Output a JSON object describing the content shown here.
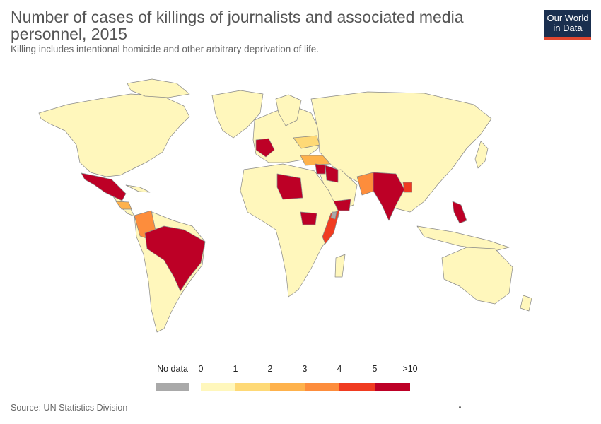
{
  "title": "Number of cases of killings of journalists and associated media personnel, 2015",
  "subtitle": "Killing includes intentional homicide and other arbitrary deprivation of life.",
  "logo": {
    "line1": "Our World",
    "line2": "in Data"
  },
  "source": "Source: UN Statistics Division",
  "colors": {
    "no_data": "#a9a9a9",
    "bin_0_1": "#fff7bc",
    "bin_1_2": "#fed976",
    "bin_2_3": "#feb24c",
    "bin_3_4": "#fd8d3c",
    "bin_4_5": "#f03b20",
    "bin_5_10": "#bd0026",
    "border": "#888888",
    "brand": "#1a2f4f",
    "brand_accent": "#e1472f"
  },
  "legend": {
    "no_data_label": "No data",
    "ticks": [
      "0",
      "1",
      "2",
      "3",
      "4",
      "5",
      ">10"
    ]
  },
  "map_data": {
    "highlighted_regions": [
      {
        "region": "Mexico",
        "bin": ">10"
      },
      {
        "region": "Brazil",
        "bin": ">10"
      },
      {
        "region": "France",
        "bin": ">10"
      },
      {
        "region": "Libya",
        "bin": ">10"
      },
      {
        "region": "Iraq",
        "bin": ">10"
      },
      {
        "region": "Syria",
        "bin": ">10"
      },
      {
        "region": "Yemen",
        "bin": ">10"
      },
      {
        "region": "India",
        "bin": ">10"
      },
      {
        "region": "Philippines",
        "bin": ">10"
      },
      {
        "region": "South Sudan",
        "bin": ">10"
      },
      {
        "region": "Bangladesh",
        "bin": "4–5"
      },
      {
        "region": "Somalia",
        "bin": "4–5"
      },
      {
        "region": "Pakistan",
        "bin": "3–4"
      },
      {
        "region": "Colombia",
        "bin": "3–4"
      },
      {
        "region": "Honduras",
        "bin": "2–3"
      },
      {
        "region": "Turkey",
        "bin": "2–3"
      },
      {
        "region": "Ukraine",
        "bin": "1–2"
      }
    ]
  }
}
